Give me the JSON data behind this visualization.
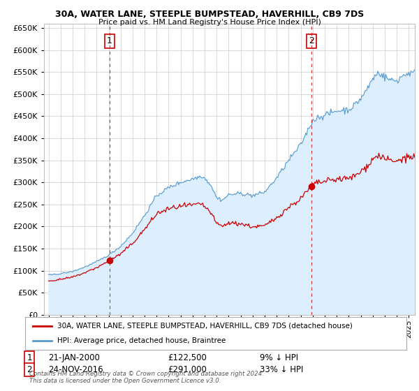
{
  "title": "30A, WATER LANE, STEEPLE BUMPSTEAD, HAVERHILL, CB9 7DS",
  "subtitle": "Price paid vs. HM Land Registry's House Price Index (HPI)",
  "legend_label_red": "30A, WATER LANE, STEEPLE BUMPSTEAD, HAVERHILL, CB9 7DS (detached house)",
  "legend_label_blue": "HPI: Average price, detached house, Braintree",
  "sale1_label": "1",
  "sale1_date": "21-JAN-2000",
  "sale1_price": "£122,500",
  "sale1_hpi": "9% ↓ HPI",
  "sale2_label": "2",
  "sale2_date": "24-NOV-2016",
  "sale2_price": "£291,000",
  "sale2_hpi": "33% ↓ HPI",
  "footnote": "Contains HM Land Registry data © Crown copyright and database right 2024.\nThis data is licensed under the Open Government Licence v3.0.",
  "red_color": "#cc0000",
  "blue_color": "#5599cc",
  "blue_fill": "#ddeeff",
  "vline_color": "#cc0000",
  "background_color": "#ffffff",
  "grid_color": "#cccccc",
  "ylim": [
    0,
    660000
  ],
  "yticks": [
    0,
    50000,
    100000,
    150000,
    200000,
    250000,
    300000,
    350000,
    400000,
    450000,
    500000,
    550000,
    600000,
    650000
  ],
  "sale1_year": 2000.08,
  "sale2_year": 2016.9,
  "sale1_value": 122500,
  "sale2_value": 291000
}
